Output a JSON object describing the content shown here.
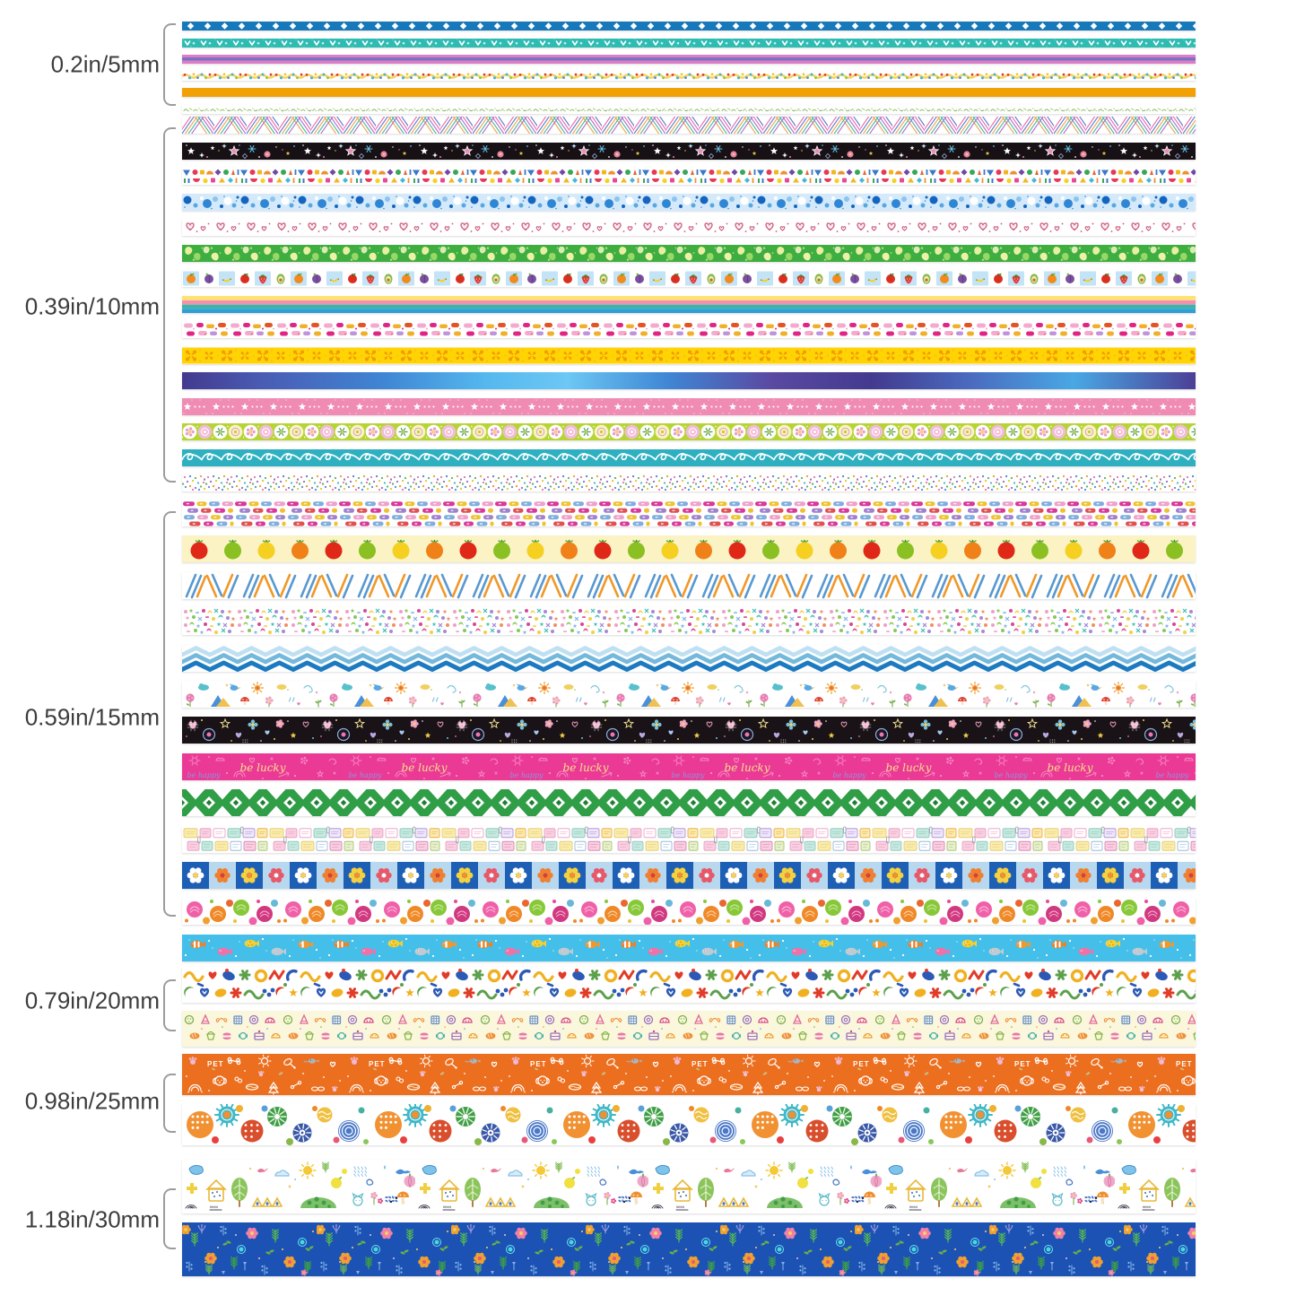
{
  "page": {
    "background": "#ffffff",
    "total_strips": 40,
    "chart": "washi tape width size chart"
  },
  "groups": [
    {
      "id": "5mm",
      "label": "0.2in/5mm",
      "width_mm": 5,
      "strips": [
        {
          "key": "blue-diamonds",
          "name": "blue tape with white diamonds",
          "colors": [
            "#1778ba",
            "#ffffff"
          ]
        },
        {
          "key": "teal-chevrons",
          "name": "teal tape with white V chevrons and dots",
          "colors": [
            "#2ebcb2",
            "#ffffff"
          ]
        },
        {
          "key": "pink-purple-stripe",
          "name": "pink tape with purple center stripe",
          "colors": [
            "#dd7cc5",
            "#7673c6"
          ]
        },
        {
          "key": "dot-garland",
          "name": "white tape with wavy yellow garland and color dots",
          "colors": [
            "#f3d464",
            "#45b7cf",
            "#e23b28"
          ]
        },
        {
          "key": "orange-solid",
          "name": "solid orange tape",
          "colors": [
            "#f2a105"
          ]
        },
        {
          "key": "green-sprigs",
          "name": "white tape with tiny green sprigs",
          "colors": [
            "#7cb84c",
            "#6a7b58"
          ]
        }
      ]
    },
    {
      "id": "10mm",
      "label": "0.39in/10mm",
      "width_mm": 10,
      "strips": [
        {
          "key": "diagonal-weave",
          "name": "white tape with multicolor diagonal weave lines",
          "colors": [
            "#e667a8",
            "#5b79cf",
            "#f0a24c"
          ]
        },
        {
          "key": "black-sparkle-stars",
          "name": "black tape with stars and sparkles",
          "colors": [
            "#171115",
            "#ffffff",
            "#e98ab8",
            "#66c0e8"
          ]
        },
        {
          "key": "geometric-confetti",
          "name": "white tape with bright geometric shapes",
          "colors": [
            "#3a78c8",
            "#e83858",
            "#f0b820",
            "#38a858"
          ]
        },
        {
          "key": "blue-dots",
          "name": "light blue tape with blue bubble dots",
          "colors": [
            "#d4eafb",
            "#1565c0",
            "#5aa7e0"
          ]
        },
        {
          "key": "pink-hearts",
          "name": "white tape with outlined pink hearts",
          "colors": [
            "#ffffff",
            "#cc5577"
          ]
        },
        {
          "key": "green-pears",
          "name": "green tape with pale pear shapes",
          "colors": [
            "#3fae41",
            "#e8f0a0",
            "#9ad866"
          ]
        },
        {
          "key": "fruit-tiles",
          "name": "white tape with fruit squares",
          "colors": [
            "#c3e3f7",
            "#f28a1e",
            "#da2f20",
            "#f5d020"
          ]
        },
        {
          "key": "rainbow-stripes",
          "name": "yellow pink teal blue stripes",
          "colors": [
            "#ffe271",
            "#f190af",
            "#3cb4aa",
            "#2f9fd6"
          ]
        },
        {
          "key": "pink-blobs",
          "name": "white tape with pink and orange blobs",
          "colors": [
            "#f4aacf",
            "#e02585",
            "#e35424",
            "#f0b02a"
          ]
        },
        {
          "key": "gold-damask",
          "name": "yellow tape with gold damask motifs",
          "colors": [
            "#ffd402",
            "#f29b05"
          ]
        },
        {
          "key": "galaxy-gradient",
          "name": "purple blue galaxy gradient tape",
          "colors": [
            "#453c92",
            "#4fb2ea",
            "#5a4aa2"
          ]
        },
        {
          "key": "pink-stars",
          "name": "pink tape with white stars and dots",
          "colors": [
            "#f08cb4",
            "#ffffff"
          ]
        },
        {
          "key": "green-medallions",
          "name": "green tape with flower medallion circles",
          "colors": [
            "#b7d437",
            "#ffffff",
            "#f2bcd8"
          ]
        },
        {
          "key": "teal-loops",
          "name": "teal tape with white cursive loops",
          "colors": [
            "#2fb0c0",
            "#ffffff"
          ]
        },
        {
          "key": "confetti-dots",
          "name": "white tape with tiny confetti dots",
          "colors": [
            "#e87caa",
            "#5b8fd8",
            "#58b868",
            "#f0a030"
          ]
        }
      ]
    },
    {
      "id": "15mm",
      "label": "0.59in/15mm",
      "width_mm": 15,
      "strips": [
        {
          "key": "color-dashes",
          "name": "white tape with colorful dash bricks",
          "colors": [
            "#d83898",
            "#80aede",
            "#eec42e",
            "#a080cc"
          ]
        },
        {
          "key": "tomatoes",
          "name": "cream tape with tomato row",
          "colors": [
            "#fbf3c4",
            "#e02818",
            "#8ac022",
            "#f5d020",
            "#f08018"
          ]
        },
        {
          "key": "crayon-diagonals",
          "name": "white tape with blue and orange crayon diagonals",
          "colors": [
            "#5898d0",
            "#f09828"
          ]
        },
        {
          "key": "pastel-confetti",
          "name": "white tape with dense pastel confetti",
          "colors": [
            "#f0a0c8",
            "#88c858",
            "#88b8e8",
            "#f0d048"
          ]
        },
        {
          "key": "blue-zigzag",
          "name": "white tape with blue chevron zigzags",
          "colors": [
            "#bfe0f2",
            "#74b8dc",
            "#1d7ac0"
          ]
        },
        {
          "key": "garden-doodles",
          "name": "white tape with flowers clouds birds mountains",
          "colors": [
            "#e87cb0",
            "#58c0cc",
            "#4a90d8",
            "#f0c050"
          ]
        },
        {
          "key": "black-pastel-hearts",
          "name": "black tape with pastel hearts flowers stars",
          "colors": [
            "#191216",
            "#f0a8c8",
            "#a8c8f0",
            "#f0e090"
          ]
        },
        {
          "key": "be-lucky-pink",
          "name": "hot pink doodle tape with lettering",
          "text": [
            "be lucky",
            "be happy"
          ],
          "colors": [
            "#ea3a96",
            "#f5e08a",
            "#8a96e0"
          ]
        },
        {
          "key": "green-lattice",
          "name": "green tape with white X lattice diamonds",
          "colors": [
            "#2f9e47",
            "#ffffff",
            "#1e7f33"
          ]
        },
        {
          "key": "stationery-notes",
          "name": "white tape with pastel note blocks",
          "colors": [
            "#f8ecb0",
            "#f8d0e0",
            "#c8e8e0"
          ]
        },
        {
          "key": "flower-checkerboard",
          "name": "blue checkerboard tape with flowers",
          "colors": [
            "#1d5fb5",
            "#b8d8f0",
            "#ffffff",
            "#f08030"
          ]
        },
        {
          "key": "crayon-dots",
          "name": "white tape with crayon scribble dots",
          "colors": [
            "#f060a8",
            "#f08828",
            "#88c838",
            "#d03880"
          ]
        },
        {
          "key": "tropical-fish",
          "name": "sky blue tape with cartoon fish",
          "colors": [
            "#44bfe9",
            "#f08020",
            "#f070a8",
            "#f5d030"
          ]
        }
      ]
    },
    {
      "id": "20mm",
      "label": "0.79in/20mm",
      "width_mm": 20,
      "strips": [
        {
          "key": "abstract-shapes",
          "name": "white tape with bold abstract shapes",
          "colors": [
            "#2b59b5",
            "#e03c28",
            "#5ca04c",
            "#f0b020"
          ]
        },
        {
          "key": "dessert-doodles",
          "name": "cream tape with dessert line doodles",
          "colors": [
            "#fbf7dc",
            "#e06898",
            "#f09038",
            "#7ab04a",
            "#6a90cc"
          ]
        }
      ]
    },
    {
      "id": "25mm",
      "label": "0.98in/25mm",
      "width_mm": 25,
      "strips": [
        {
          "key": "pet-doodles",
          "name": "orange tape with white pet doodles",
          "text": [
            "PET"
          ],
          "colors": [
            "#ec6f1f",
            "#ffffff",
            "#f2b8d4"
          ]
        },
        {
          "key": "textured-circles",
          "name": "white tape with big textured circles",
          "colors": [
            "#f19132",
            "#3f9e48",
            "#3a58a8",
            "#d94f2e"
          ]
        }
      ]
    },
    {
      "id": "30mm",
      "label": "1.18in/30mm",
      "width_mm": 30,
      "strips": [
        {
          "key": "nature-doodles",
          "name": "white tape with trees houses suns mushrooms",
          "colors": [
            "#78b848",
            "#f5c838",
            "#88c8e8",
            "#f0a8c8"
          ]
        },
        {
          "key": "navy-floral",
          "name": "royal blue tape with small flowers and ferns",
          "colors": [
            "#1c52b4",
            "#58c048",
            "#f0a030",
            "#f080a8"
          ]
        }
      ]
    }
  ]
}
